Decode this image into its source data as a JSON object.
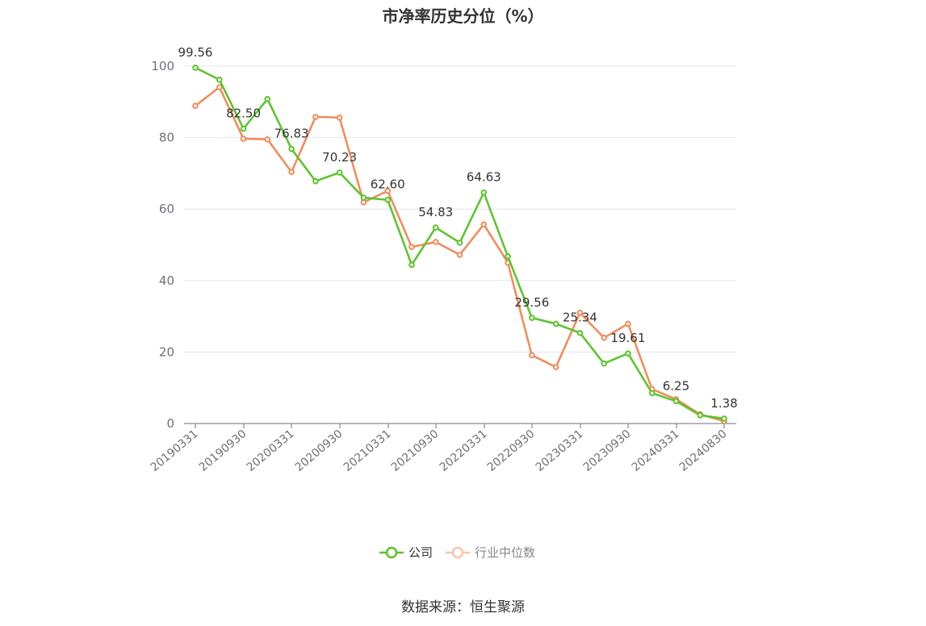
{
  "title": "市净率历史分位（%）",
  "source": "数据来源：恒生聚源",
  "colors": {
    "company": "#5ac42a",
    "industry": "#f18a58",
    "axis": "#6e7079",
    "grid": "#e0e6f1",
    "label": "#333333",
    "tick": "#6e7079"
  },
  "chart_data": {
    "type": "line",
    "title": "市净率历史分位（%）",
    "ylim": [
      0,
      100
    ],
    "yticks": [
      0,
      20,
      40,
      60,
      80,
      100
    ],
    "xticklabels": [
      "20190331",
      "20190930",
      "20200331",
      "20200930",
      "20210331",
      "20210930",
      "20220331",
      "20220930",
      "20230331",
      "20230930",
      "20240331",
      "20240830"
    ],
    "x": [
      "20190331",
      "20190630",
      "20190930",
      "20191231",
      "20200331",
      "20200630",
      "20200930",
      "20201231",
      "20210331",
      "20210630",
      "20210930",
      "20211231",
      "20220331",
      "20220630",
      "20220930",
      "20221231",
      "20230331",
      "20230630",
      "20230930",
      "20231231",
      "20240331",
      "20240630",
      "20240830"
    ],
    "series": [
      {
        "name": "公司",
        "values": [
          99.56,
          96.2,
          82.5,
          90.8,
          76.83,
          67.8,
          70.23,
          63.2,
          62.6,
          44.4,
          54.83,
          50.6,
          64.63,
          46.8,
          29.56,
          27.9,
          25.34,
          16.8,
          19.61,
          8.5,
          6.25,
          2.3,
          1.38
        ]
      },
      {
        "name": "行业中位数",
        "values": [
          88.9,
          94.1,
          79.7,
          79.5,
          70.4,
          85.8,
          85.6,
          61.9,
          65.1,
          49.4,
          50.8,
          47.2,
          55.7,
          45.0,
          19.1,
          15.8,
          31.0,
          24.0,
          27.9,
          9.6,
          6.8,
          2.6,
          0.6
        ]
      }
    ],
    "data_labels": [
      {
        "index": 0,
        "text": "99.56"
      },
      {
        "index": 2,
        "text": "82.50"
      },
      {
        "index": 4,
        "text": "76.83"
      },
      {
        "index": 6,
        "text": "70.23"
      },
      {
        "index": 8,
        "text": "62.60"
      },
      {
        "index": 10,
        "text": "54.83"
      },
      {
        "index": 12,
        "text": "64.63"
      },
      {
        "index": 14,
        "text": "29.56"
      },
      {
        "index": 16,
        "text": "25.34"
      },
      {
        "index": 18,
        "text": "19.61"
      },
      {
        "index": 20,
        "text": "6.25"
      },
      {
        "index": 22,
        "text": "1.38"
      }
    ],
    "legend": [
      "公司",
      "行业中位数"
    ],
    "grid": true,
    "legend_position": "bottom-center"
  }
}
